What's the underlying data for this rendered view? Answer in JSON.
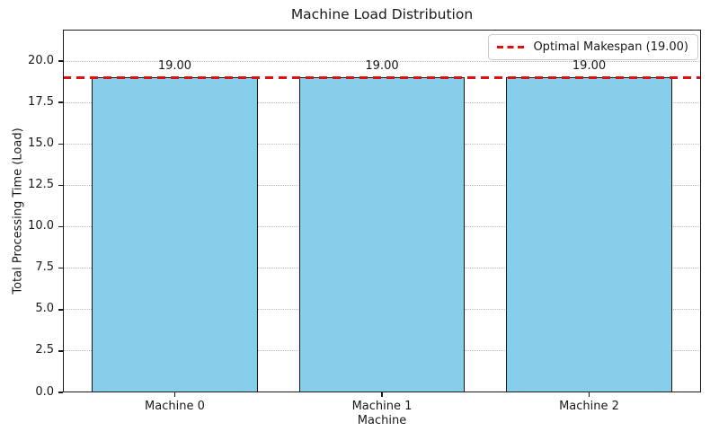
{
  "chart_data": {
    "type": "bar",
    "title": "Machine Load Distribution",
    "xlabel": "Machine",
    "ylabel": "Total Processing Time (Load)",
    "categories": [
      "Machine 0",
      "Machine 1",
      "Machine 2"
    ],
    "values": [
      19,
      19,
      19
    ],
    "bar_labels": [
      "19.00",
      "19.00",
      "19.00"
    ],
    "yticks": [
      0,
      2.5,
      5,
      7.5,
      10,
      12.5,
      15,
      17.5,
      20
    ],
    "ytick_labels": [
      "0.0",
      "2.5",
      "5.0",
      "7.5",
      "10.0",
      "12.5",
      "15.0",
      "17.5",
      "20.0"
    ],
    "ylim": [
      0,
      21.9
    ],
    "grid": "y-axis dotted",
    "bar_color": "#87CEEB",
    "bar_edge_color": "#161616",
    "grid_color": "#b8b8b8",
    "axis_color": "#1a1a1a",
    "reference_line": {
      "y": 19,
      "value_label": "19.00",
      "color": "#e01010",
      "style": "dashed"
    },
    "legend": {
      "position": "upper right",
      "entries": [
        {
          "label": "Optimal Makespan (19.00)",
          "style": "dashed",
          "color": "#e01010"
        }
      ]
    }
  }
}
